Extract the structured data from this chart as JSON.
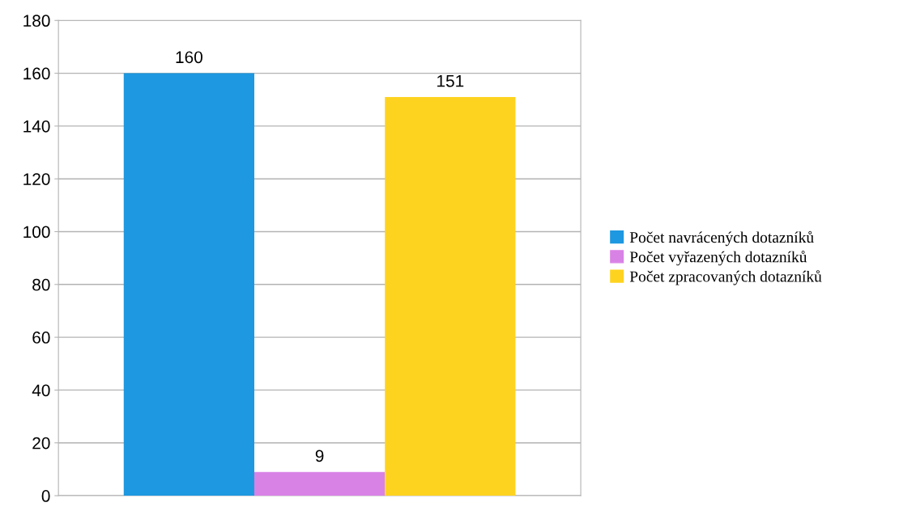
{
  "chart_data": {
    "type": "bar",
    "categories": [
      null
    ],
    "series": [
      {
        "name": "Počet navrácených dotazníků",
        "color": "#1e98e0",
        "values": [
          160
        ]
      },
      {
        "name": "Počet vyřazených dotazníků",
        "color": "#d982e6",
        "values": [
          9
        ]
      },
      {
        "name": "Počet zpracovaných dotazníků",
        "color": "#fed320",
        "values": [
          151
        ]
      }
    ],
    "ylim": [
      0,
      180
    ],
    "yticks": [
      0,
      20,
      40,
      60,
      80,
      100,
      120,
      140,
      160,
      180
    ],
    "grid": "y",
    "legend": "right",
    "data_labels": true
  }
}
